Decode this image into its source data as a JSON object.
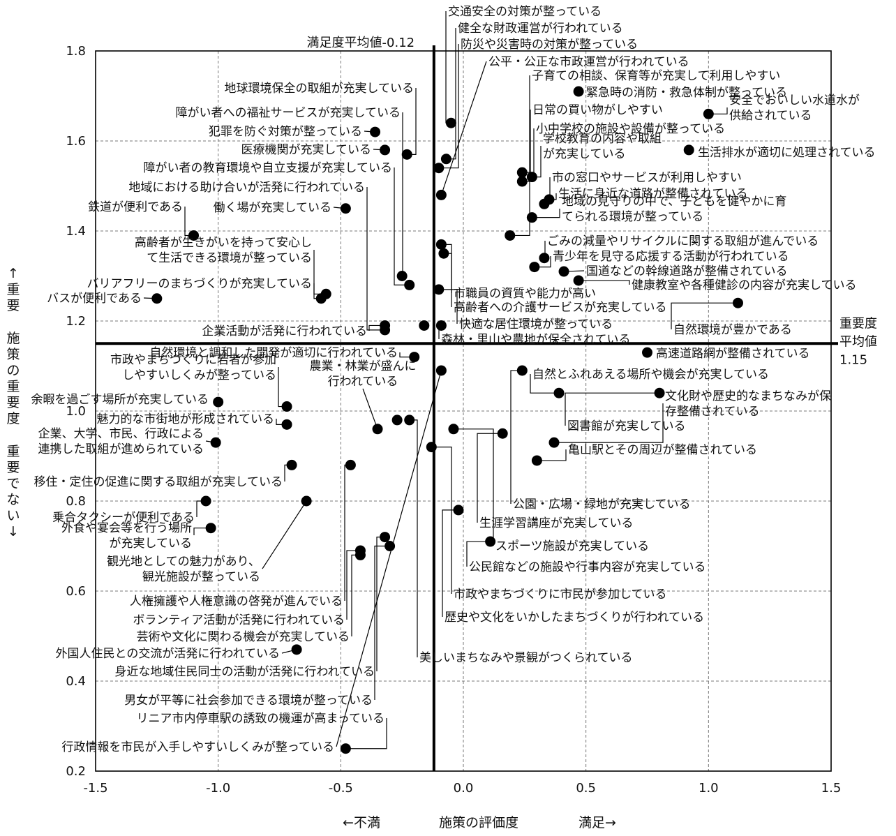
{
  "chart_data": {
    "type": "scatter",
    "title": "",
    "xlabel": "施策の評価度",
    "xlabel_left": "←不満",
    "xlabel_right": "満足→",
    "ylabel_chars": [
      "↑",
      "重",
      "要",
      "",
      "施",
      "策",
      "の",
      "重",
      "要",
      "度",
      "",
      "重",
      "要",
      "で",
      "な",
      "い",
      "↓"
    ],
    "xlim": [
      -1.5,
      1.5
    ],
    "ylim": [
      0.2,
      1.8
    ],
    "x_ticks": [
      "-1.5",
      "-1.0",
      "-0.5",
      "0.0",
      "0.5",
      "1.0",
      "1.5"
    ],
    "y_ticks": [
      "0.2",
      "0.4",
      "0.6",
      "0.8",
      "1.0",
      "1.2",
      "1.4",
      "1.6",
      "1.8"
    ],
    "grid": true,
    "x_mean": -0.12,
    "y_mean": 1.15,
    "x_mean_label": "満足度平均値-0.12",
    "y_mean_label_lines": [
      "重要度",
      "平均値",
      "1.15"
    ],
    "points": [
      {
        "x": -0.05,
        "y": 1.64,
        "label": [
          "交通安全の対策が整っている"
        ]
      },
      {
        "x": -0.07,
        "y": 1.56,
        "label": [
          "健全な財政運営が行われている"
        ]
      },
      {
        "x": -0.1,
        "y": 1.54,
        "label": [
          "防災や災害時の対策が整っている"
        ]
      },
      {
        "x": -0.09,
        "y": 1.48,
        "label": [
          "公平・公正な市政運営が行われている"
        ]
      },
      {
        "x": 0.19,
        "y": 1.39,
        "label": [
          "子育ての相談、保育等が充実して利用しやすい"
        ]
      },
      {
        "x": 0.47,
        "y": 1.71,
        "label": [
          "緊急時の消防・救急体制が整っている"
        ]
      },
      {
        "x": 1.0,
        "y": 1.66,
        "label": [
          "安全でおいしい水道水が",
          "供給されている"
        ]
      },
      {
        "x": 0.24,
        "y": 1.53,
        "label": [
          "日常の買い物がしやすい"
        ]
      },
      {
        "x": 0.24,
        "y": 1.51,
        "label": [
          "小中学校の施設や設備が整っている"
        ]
      },
      {
        "x": 0.28,
        "y": 1.52,
        "label": [
          "学校教育の内容や取組",
          "が充実している"
        ]
      },
      {
        "x": 0.92,
        "y": 1.58,
        "label": [
          "生活排水が適切に処理されている"
        ]
      },
      {
        "x": 0.33,
        "y": 1.46,
        "label": [
          "市の窓口やサービスが利用しやすい"
        ]
      },
      {
        "x": 0.35,
        "y": 1.47,
        "label": [
          "生活に身近な道路が整備されている"
        ]
      },
      {
        "x": 0.28,
        "y": 1.43,
        "label": [
          "地域の見守りの中で、子どもを健やかに育",
          "てられる環境が整っている"
        ]
      },
      {
        "x": 0.33,
        "y": 1.34,
        "label": [
          "ごみの減量やリサイクルに関する取組が進んでいる"
        ]
      },
      {
        "x": 0.29,
        "y": 1.32,
        "label": [
          "青少年を見守る応援する活動が行われている"
        ]
      },
      {
        "x": 0.41,
        "y": 1.31,
        "label": [
          "国道などの幹線道路が整備されている"
        ]
      },
      {
        "x": 0.47,
        "y": 1.29,
        "label": [
          "健康教室や各種健診の内容が充実している"
        ]
      },
      {
        "x": -0.09,
        "y": 1.37,
        "label": [
          "市職員の資質や能力が高い"
        ]
      },
      {
        "x": -0.08,
        "y": 1.35,
        "label": [
          "高齢者への介護サービスが充実している"
        ]
      },
      {
        "x": -0.1,
        "y": 1.27,
        "label": [
          "快適な居住環境が整っている"
        ]
      },
      {
        "x": 1.12,
        "y": 1.24,
        "label": [
          "自然環境が豊かである"
        ]
      },
      {
        "x": -0.09,
        "y": 1.19,
        "label": [
          "森林・里山や農地が保全されている"
        ]
      },
      {
        "x": 0.75,
        "y": 1.13,
        "label": [
          "高速道路網が整備されている"
        ]
      },
      {
        "x": -0.23,
        "y": 1.57,
        "label": [
          "地球環境保全の取組が充実している"
        ]
      },
      {
        "x": -0.25,
        "y": 1.3,
        "label": [
          "障がい者への福祉サービスが充実している"
        ]
      },
      {
        "x": -0.36,
        "y": 1.62,
        "label": [
          "犯罪を防ぐ対策が整っている"
        ]
      },
      {
        "x": -0.32,
        "y": 1.58,
        "label": [
          "医療機関が充実している"
        ]
      },
      {
        "x": -0.22,
        "y": 1.28,
        "label": [
          "障がい者の教育環境や自立支援が充実している"
        ]
      },
      {
        "x": -0.32,
        "y": 1.18,
        "label": [
          "地域における助け合いが活発に行われている"
        ]
      },
      {
        "x": -0.48,
        "y": 1.45,
        "label": [
          "働く場が充実している"
        ]
      },
      {
        "x": -1.1,
        "y": 1.39,
        "label": [
          "鉄道が便利である"
        ]
      },
      {
        "x": -0.56,
        "y": 1.26,
        "label": [
          "高齢者が生きがいを持って安心し",
          "て生活できる環境が整っている"
        ]
      },
      {
        "x": -0.58,
        "y": 1.25,
        "label": [
          "バリアフリーのまちづくりが充実している"
        ]
      },
      {
        "x": -1.25,
        "y": 1.25,
        "label": [
          "バスが便利である"
        ]
      },
      {
        "x": -0.32,
        "y": 1.19,
        "label": [
          "企業活動が活発に行われている"
        ]
      },
      {
        "x": -0.16,
        "y": 1.19,
        "label": []
      },
      {
        "x": -0.2,
        "y": 1.12,
        "label": [
          "自然環境と調和した開発が適切に行われている"
        ]
      },
      {
        "x": -0.72,
        "y": 1.01,
        "label": [
          "市政やまちづくりに若者が参加",
          "しやすいしくみが整っている"
        ]
      },
      {
        "x": -1.0,
        "y": 1.02,
        "label": [
          "余暇を過ごす場所が充実している"
        ]
      },
      {
        "x": -0.72,
        "y": 0.97,
        "label": [
          "魅力的な市街地が形成されている"
        ]
      },
      {
        "x": -0.35,
        "y": 0.96,
        "label": [
          "農業・林業が盛んに",
          "行われている"
        ]
      },
      {
        "x": -0.27,
        "y": 0.98,
        "label": []
      },
      {
        "x": -0.22,
        "y": 0.98,
        "label": [
          "美しいまちなみや景観がつくられている"
        ]
      },
      {
        "x": -1.01,
        "y": 0.93,
        "label": [
          "企業、大学、市民、行政による",
          "連携した取組が進められている"
        ]
      },
      {
        "x": -0.7,
        "y": 0.88,
        "label": [
          "移住・定住の促進に関する取組が充実している"
        ]
      },
      {
        "x": -1.05,
        "y": 0.8,
        "label": [
          "乗合タクシーが便利である"
        ]
      },
      {
        "x": -1.03,
        "y": 0.74,
        "label": [
          "外食や宴会等を行う場所",
          "が充実している"
        ]
      },
      {
        "x": -0.64,
        "y": 0.8,
        "label": [
          "観光地としての魅力があり、",
          "観光施設が整っている"
        ]
      },
      {
        "x": -0.46,
        "y": 0.88,
        "label": [
          "人権擁護や人権意識の啓発が進んでいる"
        ]
      },
      {
        "x": -0.42,
        "y": 0.69,
        "label": [
          "ボランティア活動が活発に行われている"
        ]
      },
      {
        "x": -0.42,
        "y": 0.68,
        "label": [
          "芸術や文化に関わる機会が充実している"
        ]
      },
      {
        "x": -0.68,
        "y": 0.47,
        "label": [
          "外国人住民との交流が活発に行われている"
        ]
      },
      {
        "x": -0.32,
        "y": 0.72,
        "label": [
          "身近な地域住民同士の活動が活発に行われている"
        ]
      },
      {
        "x": -0.3,
        "y": 0.7,
        "label": [
          "男女が平等に社会参加できる環境が整っている"
        ]
      },
      {
        "x": -0.48,
        "y": 0.25,
        "label": [
          "リニア市内停車駅の誘致の機運が高まっている"
        ]
      },
      {
        "x": -0.09,
        "y": 1.09,
        "label": [
          "行政情報を市民が入手しやすいしくみが整っている"
        ]
      },
      {
        "x": -0.13,
        "y": 0.92,
        "label": [
          "市政やまちづくりに市民が参加している"
        ]
      },
      {
        "x": -0.02,
        "y": 0.78,
        "label": [
          "歴史や文化をいかしたまちづくりが行われている"
        ]
      },
      {
        "x": 0.11,
        "y": 0.71,
        "label": [
          "公民館などの施設や行事内容が充実している"
        ]
      },
      {
        "x": -0.04,
        "y": 0.96,
        "label": [
          "スポーツ施設が充実している"
        ]
      },
      {
        "x": 0.16,
        "y": 0.95,
        "label": [
          "生涯学習講座が充実している"
        ]
      },
      {
        "x": 0.24,
        "y": 1.09,
        "label": [
          "公園・広場・緑地が充実している"
        ]
      },
      {
        "x": 0.39,
        "y": 1.04,
        "label": [
          "自然とふれあえる場所や機会が充実している"
        ]
      },
      {
        "x": 0.8,
        "y": 1.04,
        "label": [
          "図書館が充実している"
        ]
      },
      {
        "x": 0.37,
        "y": 0.93,
        "label": [
          "文化財や歴史的なまちなみが保",
          "存整備されている"
        ]
      },
      {
        "x": 0.3,
        "y": 0.89,
        "label": [
          "亀山駅とその周辺が整備されている"
        ]
      }
    ]
  }
}
